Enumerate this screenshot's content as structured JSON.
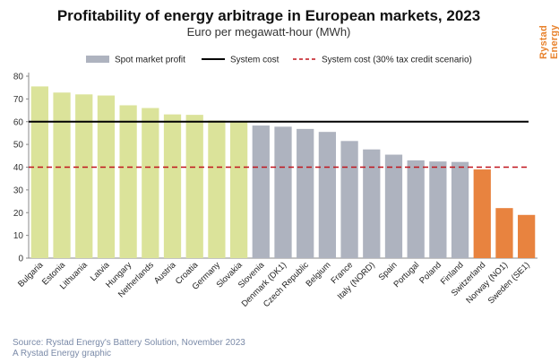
{
  "header": {
    "title": "Profitability of energy arbitrage in European markets, 2023",
    "subtitle": "Euro per megawatt-hour (MWh)",
    "brand": "Rystad Energy"
  },
  "footer": {
    "source": "Source: Rystad Energy's Battery Solution, November 2023",
    "credit": "A Rystad Energy graphic"
  },
  "colors": {
    "green": "#dbe39a",
    "gray": "#aeb3bf",
    "orange": "#e8833f",
    "system_cost": "#000000",
    "tax_credit": "#c0141c"
  },
  "chart_data": {
    "type": "bar",
    "title": "Profitability of energy arbitrage in European markets, 2023",
    "subtitle": "Euro per megawatt-hour (MWh)",
    "categories": [
      "Bulgaria",
      "Estonia",
      "Lithuania",
      "Latvia",
      "Hungary",
      "Netherlands",
      "Austria",
      "Croatia",
      "Germany",
      "Slovakia",
      "Slovenia",
      "Denmark (DK1)",
      "Czech Republic",
      "Belgium",
      "France",
      "Italy (NORD)",
      "Spain",
      "Portugal",
      "Poland",
      "Finland",
      "Switzerland",
      "Norway (NO1)",
      "Sweden (SE1)"
    ],
    "series": [
      {
        "name": "Spot market profit",
        "values": [
          75.5,
          72.8,
          72.0,
          71.5,
          67.2,
          66.0,
          63.2,
          63.0,
          60.5,
          60.2,
          58.3,
          57.8,
          56.8,
          55.5,
          51.5,
          47.8,
          45.5,
          43.0,
          42.5,
          42.3,
          39.0,
          22.0,
          19.0
        ],
        "colors": [
          "green",
          "green",
          "green",
          "green",
          "green",
          "green",
          "green",
          "green",
          "green",
          "green",
          "gray",
          "gray",
          "gray",
          "gray",
          "gray",
          "gray",
          "gray",
          "gray",
          "gray",
          "gray",
          "orange",
          "orange",
          "orange"
        ]
      }
    ],
    "reference_lines": [
      {
        "name": "System cost",
        "value": 60,
        "style": "solid"
      },
      {
        "name": "System cost (30% tax credit scenario)",
        "value": 40,
        "style": "dashed"
      }
    ],
    "legend": [
      "Spot market profit",
      "System cost",
      "System cost (30% tax credit scenario)"
    ],
    "legend_position": "top",
    "ylim": [
      0,
      80
    ],
    "yticks": [
      0,
      10,
      20,
      30,
      40,
      50,
      60,
      70,
      80
    ],
    "grid": false
  }
}
